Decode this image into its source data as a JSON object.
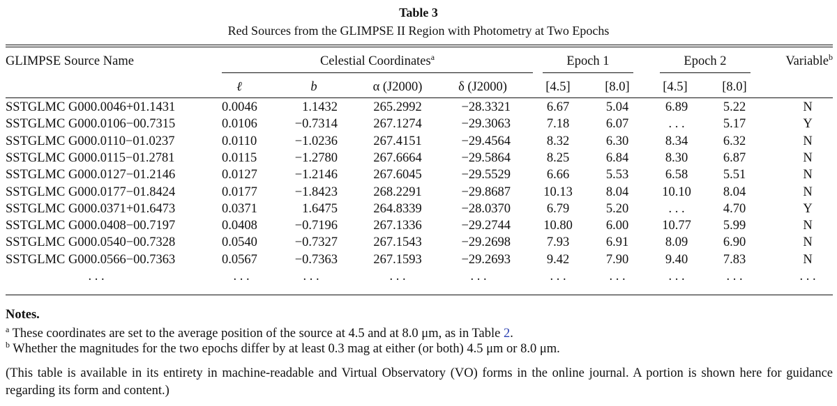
{
  "table": {
    "number": "Table 3",
    "title": "Red Sources from the GLIMPSE II Region with Photometry at Two Epochs",
    "group_headers": {
      "name": "GLIMPSE Source Name",
      "coords": "Celestial Coordinates",
      "coords_note": "a",
      "epoch1": "Epoch 1",
      "epoch2": "Epoch 2",
      "variable": "Variable",
      "variable_note": "b"
    },
    "sub_headers": [
      "ℓ",
      "b",
      "α (J2000)",
      "δ (J2000)",
      "[4.5]",
      "[8.0]",
      "[4.5]",
      "[8.0]"
    ],
    "rows": [
      [
        "SSTGLMC G000.0046+01.1431",
        "0.0046",
        "1.1432",
        "265.2992",
        "−28.3321",
        "6.67",
        "5.04",
        "6.89",
        "5.22",
        "N"
      ],
      [
        "SSTGLMC G000.0106−00.7315",
        "0.0106",
        "−0.7314",
        "267.1274",
        "−29.3063",
        "7.18",
        "6.07",
        ". . .",
        "5.17",
        "Y"
      ],
      [
        "SSTGLMC G000.0110−01.0237",
        "0.0110",
        "−1.0236",
        "267.4151",
        "−29.4564",
        "8.32",
        "6.30",
        "8.34",
        "6.32",
        "N"
      ],
      [
        "SSTGLMC G000.0115−01.2781",
        "0.0115",
        "−1.2780",
        "267.6664",
        "−29.5864",
        "8.25",
        "6.84",
        "8.30",
        "6.87",
        "N"
      ],
      [
        "SSTGLMC G000.0127−01.2146",
        "0.0127",
        "−1.2146",
        "267.6045",
        "−29.5529",
        "6.66",
        "5.53",
        "6.58",
        "5.51",
        "N"
      ],
      [
        "SSTGLMC G000.0177−01.8424",
        "0.0177",
        "−1.8423",
        "268.2291",
        "−29.8687",
        "10.13",
        "8.04",
        "10.10",
        "8.04",
        "N"
      ],
      [
        "SSTGLMC G000.0371+01.6473",
        "0.0371",
        "1.6475",
        "264.8339",
        "−28.0370",
        "6.79",
        "5.20",
        ". . .",
        "4.70",
        "Y"
      ],
      [
        "SSTGLMC G000.0408−00.7197",
        "0.0408",
        "−0.7196",
        "267.1336",
        "−29.2744",
        "10.80",
        "6.00",
        "10.77",
        "5.99",
        "N"
      ],
      [
        "SSTGLMC G000.0540−00.7328",
        "0.0540",
        "−0.7327",
        "267.1543",
        "−29.2698",
        "7.93",
        "6.91",
        "8.09",
        "6.90",
        "N"
      ],
      [
        "SSTGLMC G000.0566−00.7363",
        "0.0567",
        "−0.7363",
        "267.1593",
        "−29.2693",
        "9.42",
        "7.90",
        "9.40",
        "7.83",
        "N"
      ],
      [
        ". . .",
        ". . .",
        ". . .",
        ". . .",
        ". . .",
        ". . .",
        ". . .",
        ". . .",
        ". . .",
        ". . ."
      ]
    ]
  },
  "notes": {
    "heading": "Notes.",
    "a_mark": "a",
    "a_text_1": "These coordinates are set to the average position of the source at 4.5 and at 8.0 μm, as in Table ",
    "a_ref": "2",
    "a_text_2": ".",
    "b_mark": "b",
    "b_text": "Whether the magnitudes for the two epochs differ by at least 0.3 mag at either (or both) 4.5 μm or 8.0 μm.",
    "availability": "(This table is available in its entirety in machine-readable and Virtual Observatory (VO) forms in the online journal. A portion is shown here for guidance regarding its form and content.)"
  }
}
